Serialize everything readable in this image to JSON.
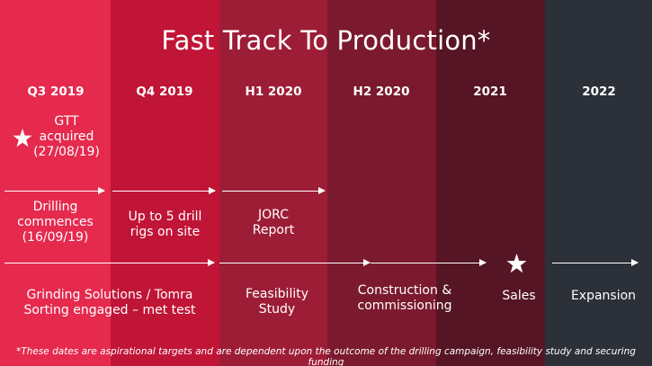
{
  "title": "Fast Track To Production*",
  "periods": [
    "Q3 2019",
    "Q4 2019",
    "H1 2020",
    "H2 2020",
    "2021",
    "2022"
  ],
  "milestones": {
    "gtt_acquired": [
      "GTT",
      "acquired",
      "(27/08/19)"
    ],
    "drilling_commences": [
      "Drilling",
      "commences",
      "(16/09/19)"
    ],
    "drill_rigs": [
      "Up to 5 drill",
      "rigs on site"
    ],
    "jorc_report": [
      "JORC",
      "Report"
    ],
    "grinding_solutions": [
      "Grinding Solutions / Tomra",
      "Sorting engaged – met test"
    ],
    "feasibility_study": [
      "Feasibility",
      "Study"
    ],
    "construction": [
      "Construction &",
      "commissioning"
    ],
    "sales": "Sales",
    "expansion": "Expansion"
  },
  "footnote": "*These dates are aspirational targets and are dependent upon the outcome of the drilling campaign, feasibility study and securing funding",
  "icons": [
    "star-icon",
    "arrow-icon"
  ],
  "colors": {
    "band_q3_2019": "#e52a4e",
    "band_q4_2019": "#c01536",
    "band_h1_2020": "#9d1d36",
    "band_h2_2020": "#7b1a2e",
    "band_2021": "#561524",
    "band_2022": "#2c3038",
    "text": "#ffffff"
  }
}
